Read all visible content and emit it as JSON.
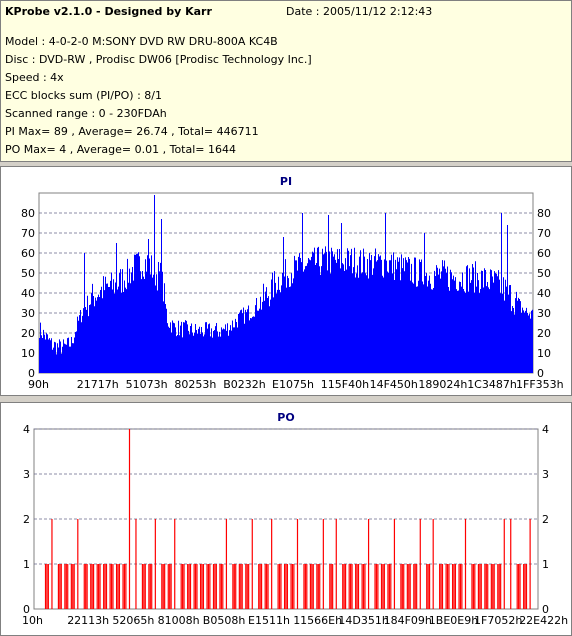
{
  "header": {
    "title": "KProbe v2.1.0 - Designed by Karr",
    "date": "Date : 2005/11/12 2:12:43",
    "lines": [
      "Model : 4-0-2-0 M:SONY    DVD RW DRU-800A  KC4B",
      "Disc : DVD-RW , Prodisc DW06 [Prodisc Technology Inc.]",
      "Speed : 4x",
      "ECC blocks sum (PI/PO) : 8/1",
      "Scanned range : 0 - 230FDAh",
      "PI Max= 89 , Average= 26.74 , Total= 446711",
      "PO Max= 4 , Average= 0.01 , Total= 1644"
    ]
  },
  "chart_data": [
    {
      "type": "bar",
      "title": "PI",
      "color": "#0000ff",
      "ylim": [
        0,
        90
      ],
      "yticks": [
        0,
        10,
        20,
        30,
        40,
        50,
        60,
        70,
        80
      ],
      "xtick_labels": [
        "90h",
        "21717h",
        "51073h",
        "80253h",
        "B0232h",
        "E1075h",
        "115F40h",
        "14F450h",
        "189024h",
        "1C3487h",
        "1FF353h"
      ],
      "x_range": [
        "0h",
        "230FDAh"
      ],
      "grid": "dashed horizontal",
      "profile": [
        [
          0,
          22
        ],
        [
          1,
          18
        ],
        [
          2,
          14
        ],
        [
          3,
          13
        ],
        [
          4,
          13
        ],
        [
          5,
          15
        ],
        [
          6,
          25
        ],
        [
          7,
          33
        ],
        [
          8,
          37
        ],
        [
          9,
          40
        ],
        [
          10,
          42
        ],
        [
          11,
          43
        ],
        [
          12,
          44
        ],
        [
          13,
          47
        ],
        [
          14,
          50
        ],
        [
          15,
          53
        ],
        [
          16,
          55
        ],
        [
          17,
          55
        ],
        [
          18,
          50
        ],
        [
          19,
          48
        ],
        [
          20,
          26
        ],
        [
          21,
          23
        ],
        [
          22,
          22
        ],
        [
          23,
          22
        ],
        [
          24,
          21
        ],
        [
          25,
          21
        ],
        [
          26,
          21
        ],
        [
          27,
          21
        ],
        [
          28,
          21
        ],
        [
          29,
          22
        ],
        [
          30,
          24
        ],
        [
          31,
          27
        ],
        [
          32,
          29
        ],
        [
          33,
          31
        ],
        [
          34,
          34
        ],
        [
          35,
          37
        ],
        [
          36,
          41
        ],
        [
          37,
          46
        ],
        [
          38,
          48
        ],
        [
          39,
          51
        ],
        [
          40,
          52
        ],
        [
          41,
          53
        ],
        [
          42,
          54
        ],
        [
          43,
          55
        ],
        [
          44,
          56
        ],
        [
          45,
          56
        ],
        [
          46,
          56
        ],
        [
          47,
          56
        ],
        [
          48,
          56
        ],
        [
          49,
          56
        ],
        [
          50,
          55
        ],
        [
          51,
          55
        ],
        [
          52,
          55
        ],
        [
          53,
          55
        ],
        [
          54,
          55
        ],
        [
          55,
          54
        ],
        [
          56,
          53
        ],
        [
          57,
          52
        ],
        [
          58,
          51
        ],
        [
          59,
          50
        ],
        [
          60,
          49
        ],
        [
          61,
          49
        ],
        [
          62,
          49
        ],
        [
          63,
          49
        ],
        [
          64,
          48
        ],
        [
          65,
          48
        ],
        [
          66,
          48
        ],
        [
          67,
          48
        ],
        [
          68,
          48
        ],
        [
          69,
          47
        ],
        [
          70,
          46
        ],
        [
          71,
          45
        ],
        [
          72,
          43
        ],
        [
          73,
          40
        ],
        [
          74,
          37
        ],
        [
          75,
          33
        ],
        [
          76,
          30
        ],
        [
          77,
          29
        ]
      ],
      "spikes": [
        [
          7,
          60
        ],
        [
          12,
          65
        ],
        [
          17,
          67
        ],
        [
          18,
          89
        ],
        [
          19,
          77
        ],
        [
          38,
          68
        ],
        [
          41,
          80
        ],
        [
          45,
          79
        ],
        [
          47,
          75
        ],
        [
          54,
          80
        ],
        [
          60,
          70
        ],
        [
          72,
          80
        ],
        [
          73,
          74
        ]
      ]
    },
    {
      "type": "bar",
      "title": "PO",
      "color": "#ff0000",
      "ylim": [
        0,
        4
      ],
      "yticks": [
        0,
        1,
        2,
        3,
        4
      ],
      "xtick_labels": [
        "10h",
        "22113h",
        "52065h",
        "81008h",
        "B0508h",
        "E1511h",
        "11566Eh",
        "14D351h",
        "184F09h",
        "1BE0E9h",
        "1F7052h",
        "22E422h"
      ],
      "x_range": [
        "0h",
        "230FDAh"
      ],
      "grid": "dashed horizontal",
      "events": [
        [
          2,
          1
        ],
        [
          3,
          2
        ],
        [
          4,
          1
        ],
        [
          5,
          1
        ],
        [
          6,
          1
        ],
        [
          7,
          2
        ],
        [
          8,
          1
        ],
        [
          9,
          1
        ],
        [
          10,
          1
        ],
        [
          11,
          1
        ],
        [
          12,
          1
        ],
        [
          13,
          1
        ],
        [
          14,
          1
        ],
        [
          15,
          4
        ],
        [
          16,
          2
        ],
        [
          17,
          1
        ],
        [
          18,
          1
        ],
        [
          19,
          2
        ],
        [
          20,
          1
        ],
        [
          21,
          1
        ],
        [
          22,
          2
        ],
        [
          23,
          1
        ],
        [
          24,
          1
        ],
        [
          25,
          1
        ],
        [
          26,
          1
        ],
        [
          27,
          1
        ],
        [
          28,
          1
        ],
        [
          29,
          1
        ],
        [
          30,
          2
        ],
        [
          31,
          1
        ],
        [
          32,
          1
        ],
        [
          33,
          1
        ],
        [
          34,
          2
        ],
        [
          35,
          1
        ],
        [
          36,
          1
        ],
        [
          37,
          2
        ],
        [
          38,
          1
        ],
        [
          39,
          1
        ],
        [
          40,
          1
        ],
        [
          41,
          2
        ],
        [
          42,
          1
        ],
        [
          43,
          1
        ],
        [
          44,
          1
        ],
        [
          45,
          2
        ],
        [
          46,
          1
        ],
        [
          47,
          2
        ],
        [
          48,
          1
        ],
        [
          49,
          1
        ],
        [
          50,
          1
        ],
        [
          51,
          1
        ],
        [
          52,
          2
        ],
        [
          53,
          1
        ],
        [
          54,
          1
        ],
        [
          55,
          1
        ],
        [
          56,
          2
        ],
        [
          57,
          1
        ],
        [
          58,
          1
        ],
        [
          59,
          1
        ],
        [
          60,
          2
        ],
        [
          61,
          1
        ],
        [
          62,
          2
        ],
        [
          63,
          1
        ],
        [
          64,
          1
        ],
        [
          65,
          1
        ],
        [
          66,
          1
        ],
        [
          67,
          2
        ],
        [
          68,
          1
        ],
        [
          69,
          1
        ],
        [
          70,
          1
        ],
        [
          71,
          1
        ],
        [
          72,
          1
        ],
        [
          73,
          2
        ],
        [
          74,
          2
        ],
        [
          75,
          1
        ],
        [
          76,
          1
        ],
        [
          77,
          2
        ]
      ]
    }
  ]
}
